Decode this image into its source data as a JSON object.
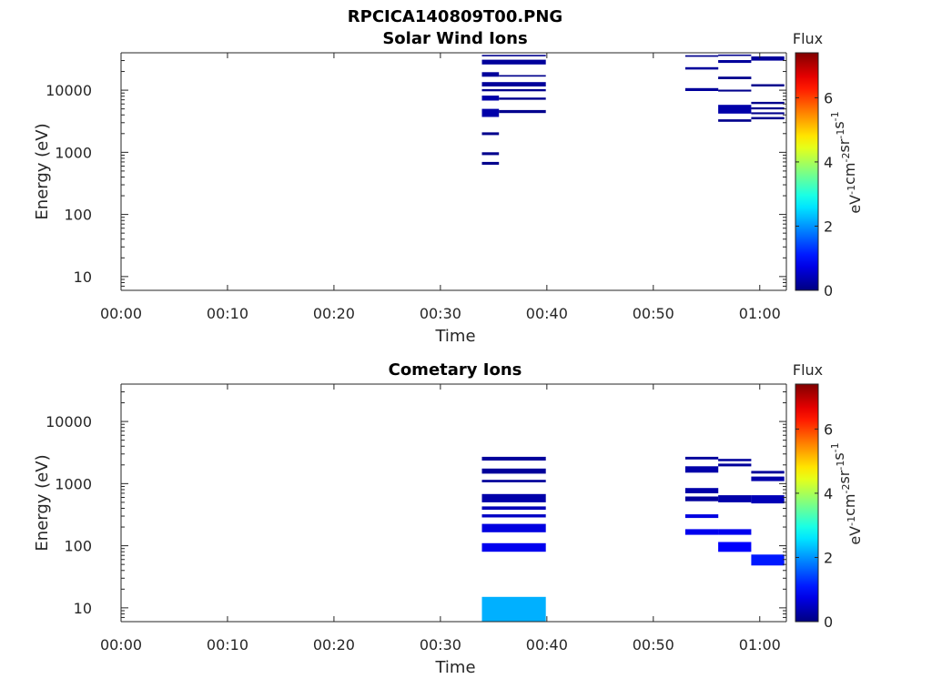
{
  "figure": {
    "title": "RPCICA140809T00.PNG"
  },
  "colors": {
    "background": "#ffffff",
    "axis": "#262626",
    "colormap": "jet"
  },
  "chart_data": [
    {
      "type": "heatmap",
      "title": "Solar Wind Ions",
      "xlabel": "Time",
      "ylabel": "Energy (eV)",
      "x_scale": "time",
      "y_scale": "log",
      "xlim": [
        "00:00",
        "01:02.5"
      ],
      "ylim": [
        6,
        40000
      ],
      "x_ticks": [
        "00:00",
        "00:10",
        "00:20",
        "00:30",
        "00:40",
        "00:50",
        "01:00"
      ],
      "y_ticks": [
        "10",
        "100",
        "1000",
        "10000"
      ],
      "colorbar": {
        "title": "Flux",
        "label": "eV-1cm-2sr-1s-1",
        "range": [
          0,
          7.4
        ],
        "ticks": [
          "0",
          "2",
          "4",
          "6"
        ]
      },
      "cells": [
        {
          "t0": "00:33.9",
          "t1": "00:39.9",
          "e0": 35000,
          "e1": 37000,
          "v": 0.1
        },
        {
          "t0": "00:33.9",
          "t1": "00:39.9",
          "e0": 26000,
          "e1": 31000,
          "v": 0.2
        },
        {
          "t0": "00:33.9",
          "t1": "00:35.5",
          "e0": 16500,
          "e1": 19500,
          "v": 0.2
        },
        {
          "t0": "00:35.5",
          "t1": "00:39.9",
          "e0": 16500,
          "e1": 17500,
          "v": 0.1
        },
        {
          "t0": "00:33.9",
          "t1": "00:39.9",
          "e0": 11500,
          "e1": 13500,
          "v": 0.2
        },
        {
          "t0": "00:33.9",
          "t1": "00:39.9",
          "e0": 9600,
          "e1": 10400,
          "v": 0.1
        },
        {
          "t0": "00:33.9",
          "t1": "00:35.5",
          "e0": 6800,
          "e1": 8200,
          "v": 0.3
        },
        {
          "t0": "00:35.5",
          "t1": "00:39.9",
          "e0": 7000,
          "e1": 7600,
          "v": 0.1
        },
        {
          "t0": "00:33.9",
          "t1": "00:35.5",
          "e0": 3700,
          "e1": 5000,
          "v": 0.3
        },
        {
          "t0": "00:35.5",
          "t1": "00:39.9",
          "e0": 4300,
          "e1": 4800,
          "v": 0.1
        },
        {
          "t0": "00:33.9",
          "t1": "00:35.5",
          "e0": 1900,
          "e1": 2100,
          "v": 0.1
        },
        {
          "t0": "00:33.9",
          "t1": "00:35.5",
          "e0": 900,
          "e1": 1000,
          "v": 0.1
        },
        {
          "t0": "00:33.9",
          "t1": "00:35.5",
          "e0": 630,
          "e1": 700,
          "v": 0.1
        },
        {
          "t0": "00:53.0",
          "t1": "00:56.1",
          "e0": 34500,
          "e1": 36500,
          "v": 0.1
        },
        {
          "t0": "00:53.0",
          "t1": "00:56.1",
          "e0": 21500,
          "e1": 23500,
          "v": 0.2
        },
        {
          "t0": "00:53.0",
          "t1": "00:56.1",
          "e0": 9700,
          "e1": 10800,
          "v": 0.2
        },
        {
          "t0": "00:56.1",
          "t1": "00:59.2",
          "e0": 9500,
          "e1": 10200,
          "v": 0.1
        },
        {
          "t0": "00:56.1",
          "t1": "00:59.2",
          "e0": 35500,
          "e1": 37500,
          "v": 0.1
        },
        {
          "t0": "00:56.1",
          "t1": "00:59.2",
          "e0": 27500,
          "e1": 30500,
          "v": 0.2
        },
        {
          "t0": "00:56.1",
          "t1": "00:59.2",
          "e0": 15000,
          "e1": 16500,
          "v": 0.1
        },
        {
          "t0": "00:56.1",
          "t1": "00:59.2",
          "e0": 4200,
          "e1": 5800,
          "v": 0.3
        },
        {
          "t0": "00:56.1",
          "t1": "00:59.2",
          "e0": 3100,
          "e1": 3400,
          "v": 0.1
        },
        {
          "t0": "00:59.2",
          "t1": "01:02.3",
          "e0": 30000,
          "e1": 35000,
          "v": 0.2
        },
        {
          "t0": "00:59.2",
          "t1": "01:02.3",
          "e0": 11500,
          "e1": 12500,
          "v": 0.1
        },
        {
          "t0": "00:59.2",
          "t1": "01:02.3",
          "e0": 6000,
          "e1": 6500,
          "v": 0.1
        },
        {
          "t0": "00:59.2",
          "t1": "01:02.3",
          "e0": 4900,
          "e1": 5300,
          "v": 0.1
        },
        {
          "t0": "00:59.2",
          "t1": "01:02.3",
          "e0": 4100,
          "e1": 4400,
          "v": 0.1
        },
        {
          "t0": "00:59.2",
          "t1": "01:02.3",
          "e0": 3400,
          "e1": 3700,
          "v": 0.1
        }
      ]
    },
    {
      "type": "heatmap",
      "title": "Cometary Ions",
      "xlabel": "Time",
      "ylabel": "Energy (eV)",
      "x_scale": "time",
      "y_scale": "log",
      "xlim": [
        "00:00",
        "01:02.5"
      ],
      "ylim": [
        6,
        40000
      ],
      "x_ticks": [
        "00:00",
        "00:10",
        "00:20",
        "00:30",
        "00:40",
        "00:50",
        "01:00"
      ],
      "y_ticks": [
        "10",
        "100",
        "1000",
        "10000"
      ],
      "colorbar": {
        "title": "Flux",
        "label": "eV-1cm-2sr-1s-1",
        "range": [
          0,
          7.4
        ],
        "ticks": [
          "0",
          "2",
          "4",
          "6"
        ]
      },
      "cells": [
        {
          "t0": "00:33.9",
          "t1": "00:39.9",
          "e0": 2350,
          "e1": 2700,
          "v": 0.2
        },
        {
          "t0": "00:33.9",
          "t1": "00:39.9",
          "e0": 1450,
          "e1": 1750,
          "v": 0.2
        },
        {
          "t0": "00:33.9",
          "t1": "00:39.9",
          "e0": 1050,
          "e1": 1150,
          "v": 0.2
        },
        {
          "t0": "00:33.9",
          "t1": "00:39.9",
          "e0": 500,
          "e1": 680,
          "v": 0.3
        },
        {
          "t0": "00:33.9",
          "t1": "00:39.9",
          "e0": 380,
          "e1": 430,
          "v": 0.4
        },
        {
          "t0": "00:33.9",
          "t1": "00:39.9",
          "e0": 285,
          "e1": 320,
          "v": 0.5
        },
        {
          "t0": "00:33.9",
          "t1": "00:39.9",
          "e0": 165,
          "e1": 225,
          "v": 0.7
        },
        {
          "t0": "00:33.9",
          "t1": "00:39.9",
          "e0": 80,
          "e1": 110,
          "v": 0.8
        },
        {
          "t0": "00:33.9",
          "t1": "00:39.9",
          "e0": 6,
          "e1": 15,
          "v": 2.2
        },
        {
          "t0": "00:53.0",
          "t1": "00:56.1",
          "e0": 2450,
          "e1": 2700,
          "v": 0.2
        },
        {
          "t0": "00:53.0",
          "t1": "00:56.1",
          "e0": 1500,
          "e1": 1900,
          "v": 0.3
        },
        {
          "t0": "00:53.0",
          "t1": "00:56.1",
          "e0": 700,
          "e1": 850,
          "v": 0.3
        },
        {
          "t0": "00:53.0",
          "t1": "00:56.1",
          "e0": 520,
          "e1": 620,
          "v": 0.2
        },
        {
          "t0": "00:53.0",
          "t1": "00:56.1",
          "e0": 280,
          "e1": 320,
          "v": 0.7
        },
        {
          "t0": "00:53.0",
          "t1": "00:56.1",
          "e0": 150,
          "e1": 185,
          "v": 0.8
        },
        {
          "t0": "00:56.1",
          "t1": "00:59.2",
          "e0": 2300,
          "e1": 2500,
          "v": 0.2
        },
        {
          "t0": "00:56.1",
          "t1": "00:59.2",
          "e0": 1900,
          "e1": 2100,
          "v": 0.2
        },
        {
          "t0": "00:56.1",
          "t1": "00:59.2",
          "e0": 500,
          "e1": 650,
          "v": 0.3
        },
        {
          "t0": "00:56.1",
          "t1": "00:59.2",
          "e0": 150,
          "e1": 185,
          "v": 0.8
        },
        {
          "t0": "00:56.1",
          "t1": "00:59.2",
          "e0": 80,
          "e1": 115,
          "v": 0.9
        },
        {
          "t0": "00:59.2",
          "t1": "01:02.3",
          "e0": 1450,
          "e1": 1600,
          "v": 0.2
        },
        {
          "t0": "00:59.2",
          "t1": "01:02.3",
          "e0": 1100,
          "e1": 1300,
          "v": 0.3
        },
        {
          "t0": "00:59.2",
          "t1": "01:02.3",
          "e0": 480,
          "e1": 650,
          "v": 0.4
        },
        {
          "t0": "00:59.2",
          "t1": "01:02.3",
          "e0": 48,
          "e1": 72,
          "v": 1.1
        }
      ]
    }
  ]
}
